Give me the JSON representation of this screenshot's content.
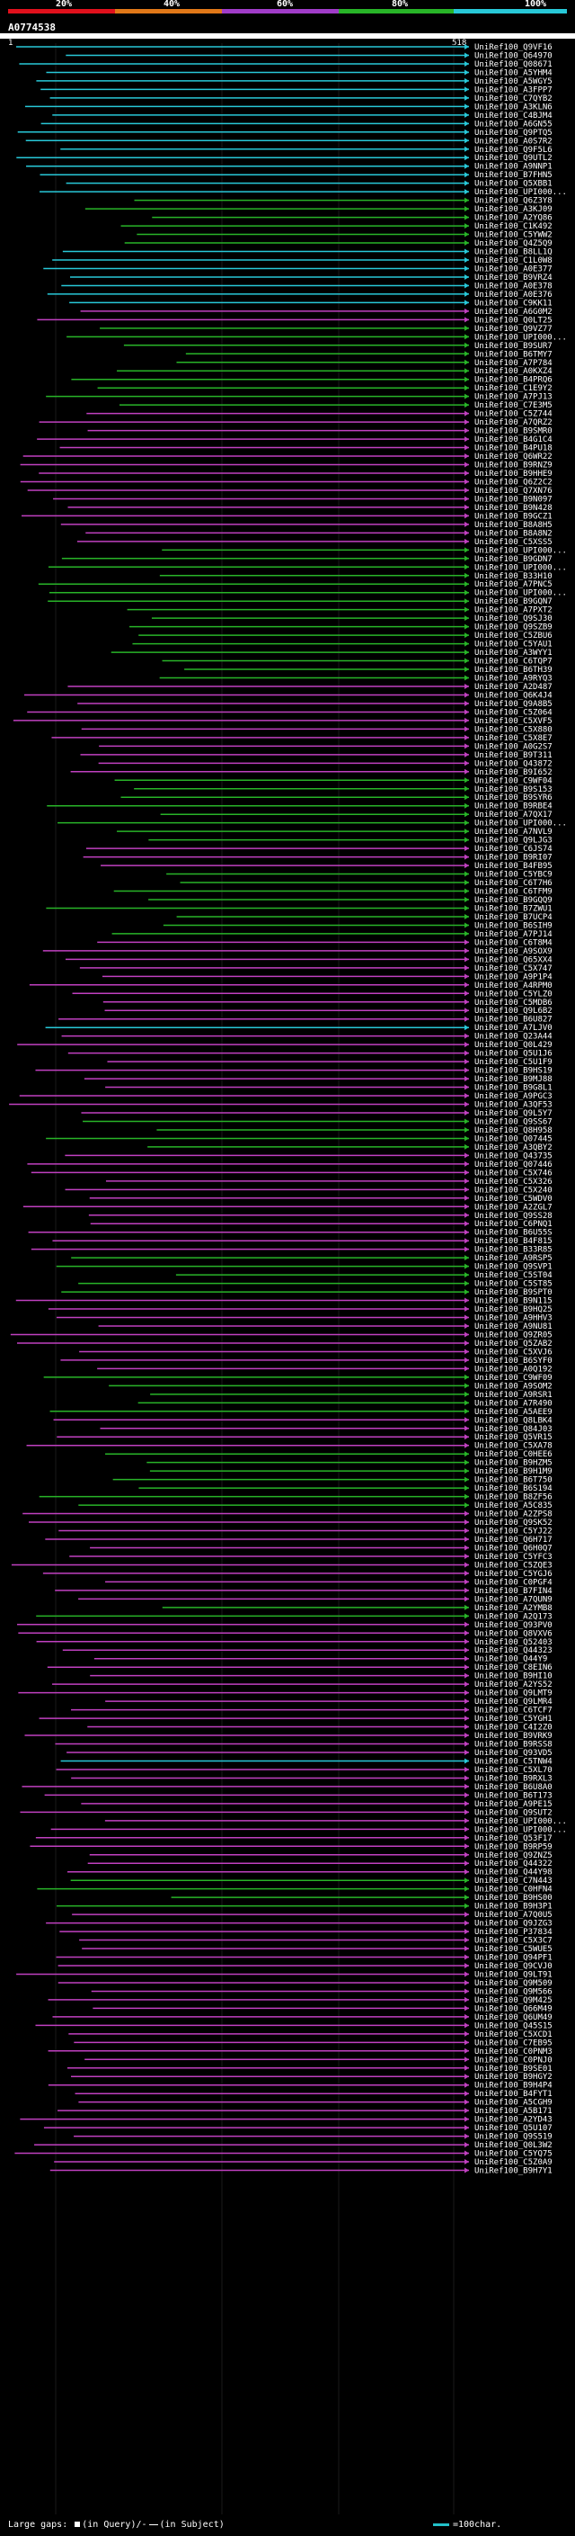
{
  "legend": {
    "labels": [
      "20%",
      "40%",
      "60%",
      "80%",
      "100%"
    ],
    "colors": [
      "#e0101c",
      "#e07818",
      "#a03cc8",
      "#28b428",
      "#28c8d8"
    ]
  },
  "query": {
    "id": "A0774538",
    "start": "1",
    "end": "518"
  },
  "footer": {
    "gaps_label": "Large gaps:",
    "query_text": "(in Query)/-",
    "subject_text": "(in Subject)",
    "scale_text": "=100char."
  },
  "hits": [
    [
      "UniRef100_Q9VF16",
      "c"
    ],
    [
      "UniRef100_Q64970",
      "c"
    ],
    [
      "UniRef100_Q08671",
      "c"
    ],
    [
      "UniRef100_A5YHM4",
      "c"
    ],
    [
      "UniRef100_A5WGY5",
      "c"
    ],
    [
      "UniRef100_A3FPP7",
      "c"
    ],
    [
      "UniRef100_C7QYB2",
      "c"
    ],
    [
      "UniRef100_A3KLN6",
      "c"
    ],
    [
      "UniRef100_C4BJM4",
      "c"
    ],
    [
      "UniRef100_A6GN55",
      "c"
    ],
    [
      "UniRef100_Q9PTQ5",
      "c"
    ],
    [
      "UniRef100_A0S7R2",
      "c"
    ],
    [
      "UniRef100_Q9F5L6",
      "c"
    ],
    [
      "UniRef100_Q9UTL2",
      "c"
    ],
    [
      "UniRef100_A9NNP1",
      "c"
    ],
    [
      "UniRef100_B7FHN5",
      "c"
    ],
    [
      "UniRef100_Q5XBB1",
      "c"
    ],
    [
      "UniRef100_UPI000...",
      "c"
    ],
    [
      "UniRef100_Q6Z3Y8",
      "g"
    ],
    [
      "UniRef100_A3KJ09",
      "g"
    ],
    [
      "UniRef100_A2YQ86",
      "g"
    ],
    [
      "UniRef100_C1K492",
      "g"
    ],
    [
      "UniRef100_C5YWW2",
      "g"
    ],
    [
      "UniRef100_Q4Z5Q9",
      "g"
    ],
    [
      "UniRef100_B8LL1Q",
      "c"
    ],
    [
      "UniRef100_C1L0W8",
      "c"
    ],
    [
      "UniRef100_A0E377",
      "c"
    ],
    [
      "UniRef100_B9VRZ4",
      "c"
    ],
    [
      "UniRef100_A0E378",
      "c"
    ],
    [
      "UniRef100_A0E376",
      "c"
    ],
    [
      "UniRef100_C9KK11",
      "c"
    ],
    [
      "UniRef100_A6G0M2",
      "m"
    ],
    [
      "UniRef100_Q0LT25",
      "m"
    ],
    [
      "UniRef100_Q9VZ77",
      "g"
    ],
    [
      "UniRef100_UPI000...",
      "g"
    ],
    [
      "UniRef100_B9SUR7",
      "g"
    ],
    [
      "UniRef100_B6TMY7",
      "g"
    ],
    [
      "UniRef100_A7P784",
      "g"
    ],
    [
      "UniRef100_A0KXZ4",
      "g"
    ],
    [
      "UniRef100_B4PRQ6",
      "g"
    ],
    [
      "UniRef100_C1E9Y2",
      "g"
    ],
    [
      "UniRef100_A7PJ13",
      "g"
    ],
    [
      "UniRef100_C7E3M5",
      "g"
    ],
    [
      "UniRef100_C5Z744",
      "m"
    ],
    [
      "UniRef100_A7QRZ2",
      "m"
    ],
    [
      "UniRef100_B9SMR0",
      "m"
    ],
    [
      "UniRef100_B4G1C4",
      "m"
    ],
    [
      "UniRef100_B4PU18",
      "m"
    ],
    [
      "UniRef100_Q6WR22",
      "m"
    ],
    [
      "UniRef100_B9RNZ9",
      "m"
    ],
    [
      "UniRef100_B9HHE9",
      "m"
    ],
    [
      "UniRef100_Q6Z2C2",
      "m"
    ],
    [
      "UniRef100_Q7XN76",
      "m"
    ],
    [
      "UniRef100_B9N097",
      "m"
    ],
    [
      "UniRef100_B9N428",
      "m"
    ],
    [
      "UniRef100_B9GCZ1",
      "m"
    ],
    [
      "UniRef100_B8A8H5",
      "m"
    ],
    [
      "UniRef100_B8A8N2",
      "m"
    ],
    [
      "UniRef100_C5XSS5",
      "m"
    ],
    [
      "UniRef100_UPI000...",
      "g"
    ],
    [
      "UniRef100_B9GDN7",
      "g"
    ],
    [
      "UniRef100_UPI000...",
      "g"
    ],
    [
      "UniRef100_B33H10",
      "g"
    ],
    [
      "UniRef100_A7PNC5",
      "g"
    ],
    [
      "UniRef100_UPI000...",
      "g"
    ],
    [
      "UniRef100_B9GQN7",
      "g"
    ],
    [
      "UniRef100_A7PXT2",
      "g"
    ],
    [
      "UniRef100_Q9SJ30",
      "g"
    ],
    [
      "UniRef100_Q9SZB9",
      "g"
    ],
    [
      "UniRef100_C5ZBU6",
      "g"
    ],
    [
      "UniRef100_C5YAU1",
      "g"
    ],
    [
      "UniRef100_A3WYY1",
      "g"
    ],
    [
      "UniRef100_C6TQP7",
      "g"
    ],
    [
      "UniRef100_B6TH39",
      "g"
    ],
    [
      "UniRef100_A9RYQ3",
      "g"
    ],
    [
      "UniRef100_A2D487",
      "m"
    ],
    [
      "UniRef100_Q6K4J4",
      "m"
    ],
    [
      "UniRef100_Q9A8B5",
      "m"
    ],
    [
      "UniRef100_C5Z064",
      "m"
    ],
    [
      "UniRef100_C5XVF5",
      "m"
    ],
    [
      "UniRef100_C5X880",
      "m"
    ],
    [
      "UniRef100_C5X8E7",
      "m"
    ],
    [
      "UniRef100_A0G2S7",
      "m"
    ],
    [
      "UniRef100_B9T311",
      "m"
    ],
    [
      "UniRef100_Q43872",
      "m"
    ],
    [
      "UniRef100_B9I652",
      "m"
    ],
    [
      "UniRef100_C9WF04",
      "g"
    ],
    [
      "UniRef100_B9S153",
      "g"
    ],
    [
      "UniRef100_B9SYR6",
      "g"
    ],
    [
      "UniRef100_B9RBE4",
      "g"
    ],
    [
      "UniRef100_A7QX17",
      "g"
    ],
    [
      "UniRef100_UPI000...",
      "g"
    ],
    [
      "UniRef100_A7NVL9",
      "g"
    ],
    [
      "UniRef100_Q9LJG3",
      "g"
    ],
    [
      "UniRef100_C6JS74",
      "m"
    ],
    [
      "UniRef100_B9RI07",
      "m"
    ],
    [
      "UniRef100_B4FB95",
      "m"
    ],
    [
      "UniRef100_C5YBC9",
      "g"
    ],
    [
      "UniRef100_C6T7H6",
      "g"
    ],
    [
      "UniRef100_C6TFM9",
      "g"
    ],
    [
      "UniRef100_B9GQQ9",
      "g"
    ],
    [
      "UniRef100_B7ZWU1",
      "g"
    ],
    [
      "UniRef100_B7UCP4",
      "g"
    ],
    [
      "UniRef100_B6SIH9",
      "g"
    ],
    [
      "UniRef100_A7PJ14",
      "g"
    ],
    [
      "UniRef100_C6T8M4",
      "m"
    ],
    [
      "UniRef100_A9SOX9",
      "m"
    ],
    [
      "UniRef100_Q65XX4",
      "m"
    ],
    [
      "UniRef100_C5X747",
      "m"
    ],
    [
      "UniRef100_A9P1P4",
      "m"
    ],
    [
      "UniRef100_A4RPM0",
      "m"
    ],
    [
      "UniRef100_C5YLZ0",
      "m"
    ],
    [
      "UniRef100_C5MDB6",
      "m"
    ],
    [
      "UniRef100_Q9L6B2",
      "m"
    ],
    [
      "UniRef100_B6U827",
      "m"
    ],
    [
      "UniRef100_A7LJV0",
      "c"
    ],
    [
      "UniRef100_Q23A44",
      "m"
    ],
    [
      "UniRef100_Q0L429",
      "m"
    ],
    [
      "UniRef100_Q5U1J6",
      "m"
    ],
    [
      "UniRef100_C5U1F9",
      "m"
    ],
    [
      "UniRef100_B9HS19",
      "m"
    ],
    [
      "UniRef100_B9MJ88",
      "m"
    ],
    [
      "UniRef100_B9G8L1",
      "m"
    ],
    [
      "UniRef100_A9PGC3",
      "m"
    ],
    [
      "UniRef100_A3QF53",
      "m"
    ],
    [
      "UniRef100_Q9L5Y7",
      "m"
    ],
    [
      "UniRef100_Q9SS67",
      "g"
    ],
    [
      "UniRef100_Q8H958",
      "g"
    ],
    [
      "UniRef100_Q07445",
      "g"
    ],
    [
      "UniRef100_A3QBY2",
      "g"
    ],
    [
      "UniRef100_Q43735",
      "m"
    ],
    [
      "UniRef100_Q07446",
      "m"
    ],
    [
      "UniRef100_C5X746",
      "m"
    ],
    [
      "UniRef100_C5X326",
      "m"
    ],
    [
      "UniRef100_C5X240",
      "m"
    ],
    [
      "UniRef100_C5WDV0",
      "m"
    ],
    [
      "UniRef100_A2ZGL7",
      "m"
    ],
    [
      "UniRef100_Q9SS28",
      "m"
    ],
    [
      "UniRef100_C6PNQ1",
      "m"
    ],
    [
      "UniRef100_B6U55S",
      "m"
    ],
    [
      "UniRef100_B4F815",
      "m"
    ],
    [
      "UniRef100_B33R85",
      "m"
    ],
    [
      "UniRef100_A9RSP5",
      "g"
    ],
    [
      "UniRef100_Q9SVP1",
      "g"
    ],
    [
      "UniRef100_C5ST04",
      "g"
    ],
    [
      "UniRef100_C5ST85",
      "g"
    ],
    [
      "UniRef100_B9SPT0",
      "g"
    ],
    [
      "UniRef100_B9N115",
      "m"
    ],
    [
      "UniRef100_B9HQ25",
      "m"
    ],
    [
      "UniRef100_A9HHV3",
      "m"
    ],
    [
      "UniRef100_A9NU81",
      "m"
    ],
    [
      "UniRef100_Q9ZR05",
      "m"
    ],
    [
      "UniRef100_Q5ZAB2",
      "m"
    ],
    [
      "UniRef100_C5XVJ6",
      "m"
    ],
    [
      "UniRef100_B6SYF0",
      "m"
    ],
    [
      "UniRef100_A0Q192",
      "m"
    ],
    [
      "UniRef100_C9WF09",
      "g"
    ],
    [
      "UniRef100_A9SOM2",
      "g"
    ],
    [
      "UniRef100_A9RSR1",
      "g"
    ],
    [
      "UniRef100_A7R490",
      "g"
    ],
    [
      "UniRef100_A5AEE9",
      "g"
    ],
    [
      "UniRef100_Q8LBK4",
      "m"
    ],
    [
      "UniRef100_Q84J03",
      "m"
    ],
    [
      "UniRef100_Q5VR15",
      "m"
    ],
    [
      "UniRef100_C5XA78",
      "m"
    ],
    [
      "UniRef100_C0HEE6",
      "g"
    ],
    [
      "UniRef100_B9HZM5",
      "g"
    ],
    [
      "UniRef100_B9H1M9",
      "g"
    ],
    [
      "UniRef100_B6T750",
      "g"
    ],
    [
      "UniRef100_B6S194",
      "g"
    ],
    [
      "UniRef100_B8ZF56",
      "g"
    ],
    [
      "UniRef100_A5C835",
      "g"
    ],
    [
      "UniRef100_A2ZPS8",
      "m"
    ],
    [
      "UniRef100_Q9SK52",
      "m"
    ],
    [
      "UniRef100_C5YJ22",
      "m"
    ],
    [
      "UniRef100_Q6H717",
      "m"
    ],
    [
      "UniRef100_Q6H0Q7",
      "m"
    ],
    [
      "UniRef100_C5YFC3",
      "m"
    ],
    [
      "UniRef100_C5ZQE3",
      "m"
    ],
    [
      "UniRef100_C5YGJ6",
      "m"
    ],
    [
      "UniRef100_C0PGF4",
      "m"
    ],
    [
      "UniRef100_B7FIN4",
      "m"
    ],
    [
      "UniRef100_A7QUN9",
      "m"
    ],
    [
      "UniRef100_A2YMB8",
      "g"
    ],
    [
      "UniRef100_A2Q173",
      "g"
    ],
    [
      "UniRef100_Q93PV0",
      "m"
    ],
    [
      "UniRef100_Q8VXV6",
      "m"
    ],
    [
      "UniRef100_Q52403",
      "m"
    ],
    [
      "UniRef100_Q44323",
      "m"
    ],
    [
      "UniRef100_Q44Y9",
      "m"
    ],
    [
      "UniRef100_C8EIN6",
      "m"
    ],
    [
      "UniRef100_B9HI10",
      "m"
    ],
    [
      "UniRef100_A2YS52",
      "m"
    ],
    [
      "UniRef100_Q9LMT9",
      "m"
    ],
    [
      "UniRef100_Q9LMR4",
      "m"
    ],
    [
      "UniRef100_C6TCF7",
      "m"
    ],
    [
      "UniRef100_C5YGH1",
      "m"
    ],
    [
      "UniRef100_C4I2Z0",
      "m"
    ],
    [
      "UniRef100_B9VRK9",
      "m"
    ],
    [
      "UniRef100_B9RSS8",
      "m"
    ],
    [
      "UniRef100_Q93VD5",
      "m"
    ],
    [
      "UniRef100_C5TNW4",
      "c"
    ],
    [
      "UniRef100_C5XL70",
      "m"
    ],
    [
      "UniRef100_B9RXL3",
      "m"
    ],
    [
      "UniRef100_B6U8A0",
      "m"
    ],
    [
      "UniRef100_B6T173",
      "m"
    ],
    [
      "UniRef100_A9PE15",
      "m"
    ],
    [
      "UniRef100_Q9SUT2",
      "m"
    ],
    [
      "UniRef100_UPI000...",
      "m"
    ],
    [
      "UniRef100_UPI000...",
      "m"
    ],
    [
      "UniRef100_Q53F17",
      "m"
    ],
    [
      "UniRef100_B9RP59",
      "m"
    ],
    [
      "UniRef100_Q9ZNZ5",
      "m"
    ],
    [
      "UniRef100_Q44322",
      "m"
    ],
    [
      "UniRef100_Q44Y98",
      "m"
    ],
    [
      "UniRef100_C7N443",
      "g"
    ],
    [
      "UniRef100_C0HFN4",
      "g"
    ],
    [
      "UniRef100_B9HS00",
      "g"
    ],
    [
      "UniRef100_B9H3P1",
      "g"
    ],
    [
      "UniRef100_A7Q0U5",
      "m"
    ],
    [
      "UniRef100_Q9JZG3",
      "m"
    ],
    [
      "UniRef100_P37834",
      "m"
    ],
    [
      "UniRef100_C5X3C7",
      "m"
    ],
    [
      "UniRef100_C5WUE5",
      "m"
    ],
    [
      "UniRef100_Q94PF1",
      "m"
    ],
    [
      "UniRef100_Q9CVJ0",
      "m"
    ],
    [
      "UniRef100_Q9LT91",
      "m"
    ],
    [
      "UniRef100_Q9M509",
      "m"
    ],
    [
      "UniRef100_Q9M566",
      "m"
    ],
    [
      "UniRef100_Q9M425",
      "m"
    ],
    [
      "UniRef100_Q66M49",
      "m"
    ],
    [
      "UniRef100_Q6UM49",
      "m"
    ],
    [
      "UniRef100_Q45S15",
      "m"
    ],
    [
      "UniRef100_C5XCD1",
      "m"
    ],
    [
      "UniRef100_C7EB95",
      "m"
    ],
    [
      "UniRef100_C0PNM3",
      "m"
    ],
    [
      "UniRef100_C0PNJ0",
      "m"
    ],
    [
      "UniRef100_B9SE01",
      "m"
    ],
    [
      "UniRef100_B9HGY2",
      "m"
    ],
    [
      "UniRef100_B9H4P4",
      "m"
    ],
    [
      "UniRef100_B4FYT1",
      "m"
    ],
    [
      "UniRef100_A5CGH9",
      "m"
    ],
    [
      "UniRef100_A5B171",
      "m"
    ],
    [
      "UniRef100_A2YD43",
      "m"
    ],
    [
      "UniRef100_Q5U107",
      "m"
    ],
    [
      "UniRef100_Q9S519",
      "m"
    ],
    [
      "UniRef100_Q0L3W2",
      "m"
    ],
    [
      "UniRef100_C5YQ75",
      "m"
    ],
    [
      "UniRef100_C5Z0A9",
      "m"
    ],
    [
      "UniRef100_B9H7Y1",
      "m"
    ]
  ]
}
